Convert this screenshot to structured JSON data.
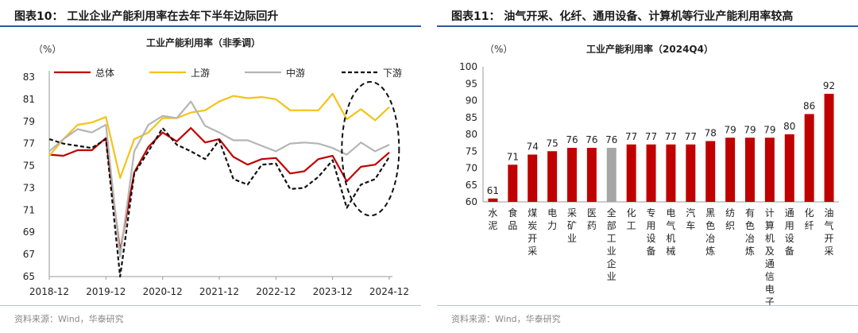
{
  "left": {
    "figure_title": "图表10： 工业企业产能利用率在去年下半年边际回升",
    "source": "资料来源：Wind，华泰研究",
    "chart_data": {
      "type": "line",
      "title": "工业产能利用率（非季调）",
      "ylabel": "（%）",
      "ylim": [
        65,
        83
      ],
      "yticks": [
        65,
        67,
        69,
        71,
        73,
        75,
        77,
        79,
        81,
        83
      ],
      "xticks": [
        "2018-12",
        "2019-12",
        "2020-12",
        "2021-12",
        "2022-12",
        "2023-12",
        "2024-12"
      ],
      "x": [
        "2018-12",
        "2019-03",
        "2019-06",
        "2019-09",
        "2019-12",
        "2020-03",
        "2020-06",
        "2020-09",
        "2020-12",
        "2021-03",
        "2021-06",
        "2021-09",
        "2021-12",
        "2022-03",
        "2022-06",
        "2022-09",
        "2022-12",
        "2023-03",
        "2023-06",
        "2023-09",
        "2023-12",
        "2024-03",
        "2024-06",
        "2024-09",
        "2024-12"
      ],
      "legend_position": "top",
      "annotation": "dashed ellipse highlighting recent months",
      "series": [
        {
          "name": "总体",
          "color": "#c00000",
          "style": "solid",
          "values": [
            76.0,
            75.9,
            76.4,
            76.4,
            77.5,
            67.3,
            74.4,
            76.7,
            78.0,
            77.2,
            78.4,
            77.1,
            77.4,
            75.8,
            75.1,
            75.6,
            75.7,
            74.3,
            74.5,
            75.6,
            75.9,
            73.6,
            74.9,
            75.1,
            76.2
          ]
        },
        {
          "name": "上游",
          "color": "#f5c218",
          "style": "solid",
          "values": [
            75.9,
            77.4,
            78.7,
            78.9,
            79.4,
            73.9,
            77.4,
            78.0,
            79.3,
            79.3,
            79.8,
            80.0,
            80.8,
            81.3,
            81.1,
            81.2,
            81.0,
            80.0,
            80.0,
            80.0,
            81.5,
            79.2,
            80.1,
            79.1,
            80.3
          ]
        },
        {
          "name": "中游",
          "color": "#b5b5b5",
          "style": "solid",
          "values": [
            76.3,
            77.4,
            78.3,
            78.0,
            78.7,
            66.8,
            76.3,
            78.7,
            79.5,
            79.3,
            80.8,
            78.6,
            78.0,
            77.3,
            77.3,
            76.8,
            76.3,
            77.0,
            77.1,
            77.0,
            76.6,
            76.0,
            77.1,
            76.3,
            76.9
          ]
        },
        {
          "name": "下游",
          "color": "#111111",
          "style": "dashed",
          "values": [
            77.4,
            77.0,
            76.8,
            76.6,
            77.4,
            65.0,
            74.3,
            76.3,
            78.4,
            76.9,
            76.3,
            75.6,
            77.3,
            73.8,
            73.3,
            75.1,
            75.2,
            72.9,
            73.0,
            74.0,
            75.5,
            71.2,
            73.3,
            73.8,
            75.8
          ]
        }
      ]
    }
  },
  "right": {
    "figure_title": "图表11： 油气开采、化纤、通用设备、计算机等行业产能利用率较高",
    "source": "资料来源：Wind，华泰研究",
    "chart_data": {
      "type": "bar",
      "title": "工业产能利用率（2024Q4）",
      "ylabel": "（%）",
      "ylim": [
        60,
        100
      ],
      "yticks": [
        60,
        65,
        70,
        75,
        80,
        85,
        90,
        95,
        100
      ],
      "categories": [
        "水泥",
        "食品",
        "煤炭开采",
        "电力",
        "采矿业",
        "医药",
        "全部工业企业",
        "化工",
        "专用设备",
        "电气机械",
        "汽车",
        "黑色冶炼",
        "纺织",
        "有色冶炼",
        "计算机及通信电子",
        "通用设备",
        "化纤",
        "油气开采"
      ],
      "values": [
        61,
        71,
        74,
        75,
        76,
        76,
        76,
        77,
        77,
        77,
        77,
        78,
        79,
        79,
        79,
        80,
        86,
        92
      ],
      "value_labels": [
        "61",
        "71",
        "74",
        "75",
        "76",
        "76",
        "76",
        "77",
        "77",
        "77",
        "77",
        "78",
        "79",
        "79",
        "79",
        "80",
        "86",
        "92"
      ],
      "bar_color": "#c00000",
      "highlight_color": "#a6a6a6",
      "highlight_category": "全部工业企业"
    }
  }
}
